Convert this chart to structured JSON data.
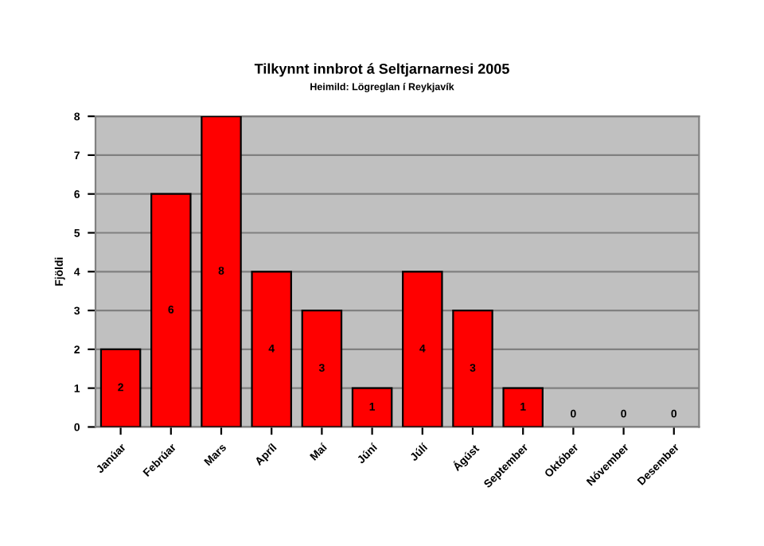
{
  "chart_data": {
    "type": "bar",
    "title": "Tilkynnt innbrot á Seltjarnarnesi 2005",
    "subtitle": "Heimild: Lögreglan í Reykjavík",
    "ylabel": "Fjöldi",
    "categories": [
      "Janúar",
      "Febrúar",
      "Mars",
      "Apríl",
      "Maí",
      "Júní",
      "Júlí",
      "Ágúst",
      "September",
      "Október",
      "Nóvember",
      "Desember"
    ],
    "values": [
      2,
      6,
      8,
      4,
      3,
      1,
      4,
      3,
      1,
      0,
      0,
      0
    ],
    "color": "#ff0000",
    "ylim": [
      0,
      8
    ],
    "yticks": [
      0,
      1,
      2,
      3,
      4,
      5,
      6,
      7,
      8
    ],
    "grid": "y",
    "data_labels": true
  }
}
